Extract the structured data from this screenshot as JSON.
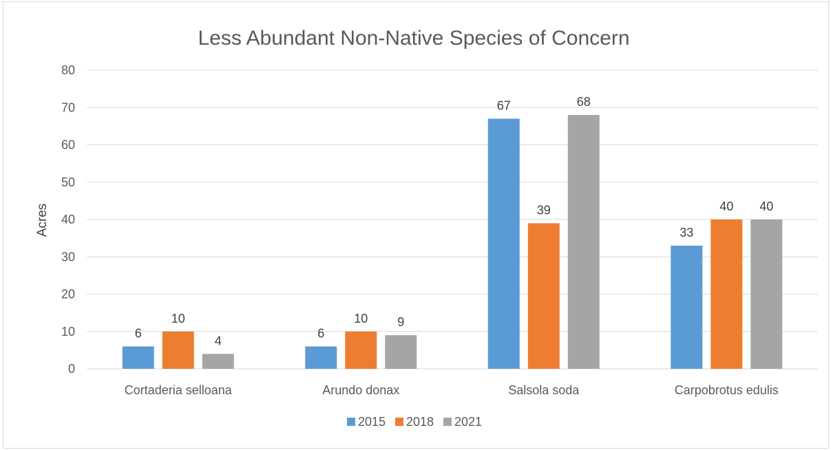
{
  "chart_data": {
    "type": "bar",
    "title": "Less Abundant Non-Native Species of Concern",
    "xlabel": "",
    "ylabel": "Acres",
    "categories": [
      "Cortaderia selloana",
      "Arundo donax",
      "Salsola soda",
      "Carpobrotus edulis"
    ],
    "series": [
      {
        "name": "2015",
        "values": [
          6,
          6,
          67,
          33
        ],
        "color": "#5b9bd5"
      },
      {
        "name": "2018",
        "values": [
          10,
          10,
          39,
          40
        ],
        "color": "#ed7d31"
      },
      {
        "name": "2021",
        "values": [
          4,
          9,
          68,
          40
        ],
        "color": "#a5a5a5"
      }
    ],
    "ylim": [
      0,
      80
    ],
    "yticks": [
      0,
      10,
      20,
      30,
      40,
      50,
      60,
      70,
      80
    ],
    "grid": true,
    "legend_position": "bottom",
    "data_labels": true
  }
}
